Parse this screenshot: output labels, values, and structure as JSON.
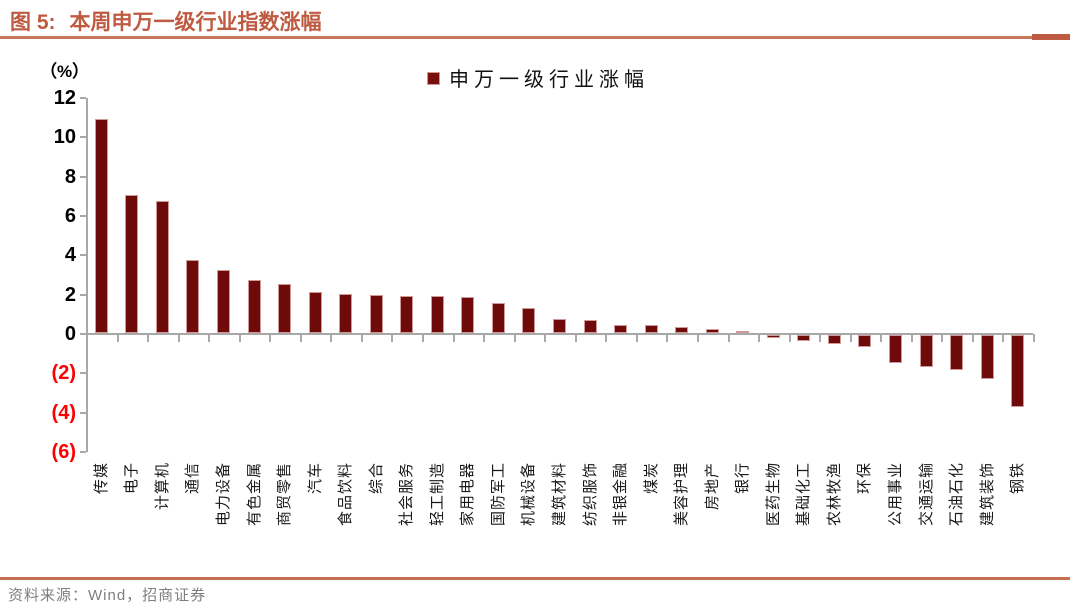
{
  "header": {
    "figure_label": "图 5:",
    "title": "本周申万一级行业指数涨幅",
    "accent_color": "#BE5A41",
    "rule_color": "#C8775A"
  },
  "legend": {
    "label": "申万一级行业涨幅",
    "marker_color": "#7A100D"
  },
  "footer": {
    "source": "资料来源：Wind，招商证券",
    "rule_color": "#C4714F"
  },
  "chart_data": {
    "type": "bar",
    "title": "本周申万一级行业指数涨幅",
    "unit_label": "（%）",
    "legend": "申万一级行业涨幅",
    "legend_position": "top-center",
    "grid": false,
    "categories": [
      "传媒",
      "电子",
      "计算机",
      "通信",
      "电力设备",
      "有色金属",
      "商贸零售",
      "汽车",
      "食品饮料",
      "综合",
      "社会服务",
      "轻工制造",
      "家用电器",
      "国防军工",
      "机械设备",
      "建筑材料",
      "纺织服饰",
      "非银金融",
      "煤炭",
      "美容护理",
      "房地产",
      "银行",
      "医药生物",
      "基础化工",
      "农林牧渔",
      "环保",
      "公用事业",
      "交通运输",
      "石油石化",
      "建筑装饰",
      "钢铁"
    ],
    "values": [
      10.9,
      7.0,
      6.7,
      3.7,
      3.2,
      2.7,
      2.5,
      2.1,
      2.0,
      1.95,
      1.9,
      1.9,
      1.85,
      1.5,
      1.25,
      0.7,
      0.65,
      0.4,
      0.4,
      0.3,
      0.2,
      0.1,
      -0.15,
      -0.3,
      -0.45,
      -0.6,
      -1.4,
      -1.65,
      -1.8,
      -2.25,
      -3.65
    ],
    "ylim": [
      -6,
      12
    ],
    "yticks": [
      {
        "label": "12",
        "value": 12
      },
      {
        "label": "10",
        "value": 10
      },
      {
        "label": "8",
        "value": 8
      },
      {
        "label": "6",
        "value": 6
      },
      {
        "label": "4",
        "value": 4
      },
      {
        "label": "2",
        "value": 2
      },
      {
        "label": "0",
        "value": 0
      },
      {
        "label": "(2)",
        "value": -2
      },
      {
        "label": "(4)",
        "value": -4
      },
      {
        "label": "(6)",
        "value": -6
      }
    ],
    "bar_color": "#6E0B0A",
    "bar_border_color": "#CF9A97",
    "axis_color": "#A8A8A8",
    "tick_label_color": "#000000",
    "negative_tick_color": "#FF0000"
  }
}
